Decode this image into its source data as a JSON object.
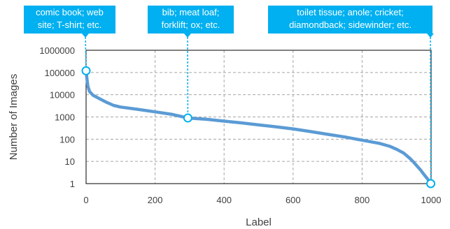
{
  "colors": {
    "line": "#5b9bd5",
    "callout": "#00b0f0",
    "marker_fill": "#ffffff",
    "grid": "#a6a6a6"
  },
  "callouts": [
    {
      "lines": [
        "comic book; web",
        "site; T-shirt; etc."
      ],
      "x": 0,
      "y": 120000
    },
    {
      "lines": [
        "bib; meat loaf;",
        "forklift; ox; etc."
      ],
      "x": 295,
      "y": 900
    },
    {
      "lines": [
        "toilet tissue; anole; cricket;",
        "diamondback; sidewinder; etc."
      ],
      "x": 999,
      "y": 1
    }
  ],
  "chart_data": {
    "type": "line",
    "title": "",
    "xlabel": "Label",
    "ylabel": "Number of Images",
    "xlim": [
      0,
      1000
    ],
    "ylim": [
      1,
      1000000
    ],
    "yscale": "log",
    "grid": true,
    "xticks": [
      "0",
      "200",
      "400",
      "600",
      "800",
      "1000"
    ],
    "yticks": [
      "1",
      "10",
      "100",
      "1000",
      "10000",
      "100000",
      "1000000"
    ],
    "series": [
      {
        "name": "",
        "x": [
          0,
          2,
          5,
          10,
          20,
          40,
          60,
          80,
          100,
          150,
          200,
          250,
          295,
          350,
          400,
          450,
          500,
          550,
          600,
          650,
          700,
          750,
          800,
          850,
          880,
          900,
          920,
          940,
          950,
          960,
          970,
          980,
          990,
          999
        ],
        "y": [
          120000,
          60000,
          25000,
          14000,
          9500,
          6500,
          4500,
          3300,
          2800,
          2200,
          1700,
          1300,
          900,
          780,
          650,
          540,
          440,
          360,
          290,
          220,
          165,
          125,
          90,
          65,
          48,
          35,
          24,
          13,
          9,
          6,
          4,
          2.5,
          1.6,
          1
        ]
      }
    ]
  }
}
